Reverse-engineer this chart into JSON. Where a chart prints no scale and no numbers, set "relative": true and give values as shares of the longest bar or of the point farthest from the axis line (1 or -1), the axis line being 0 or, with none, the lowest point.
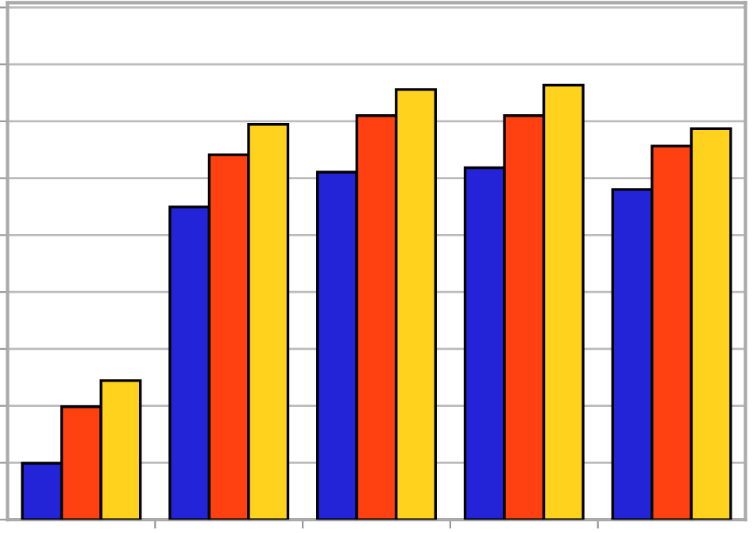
{
  "chart_data": {
    "type": "bar",
    "relative": true,
    "grid": "y",
    "legend": false,
    "categories": [
      null,
      null,
      null,
      null,
      null
    ],
    "series": [
      {
        "color": "#2323d8",
        "values": [
          0.13,
          0.72,
          0.8,
          0.81,
          0.76
        ]
      },
      {
        "color": "#ff4010",
        "values": [
          0.26,
          0.84,
          0.93,
          0.93,
          0.86
        ]
      },
      {
        "color": "#ffd21e",
        "values": [
          0.32,
          0.91,
          0.99,
          1,
          0.9
        ]
      }
    ]
  }
}
